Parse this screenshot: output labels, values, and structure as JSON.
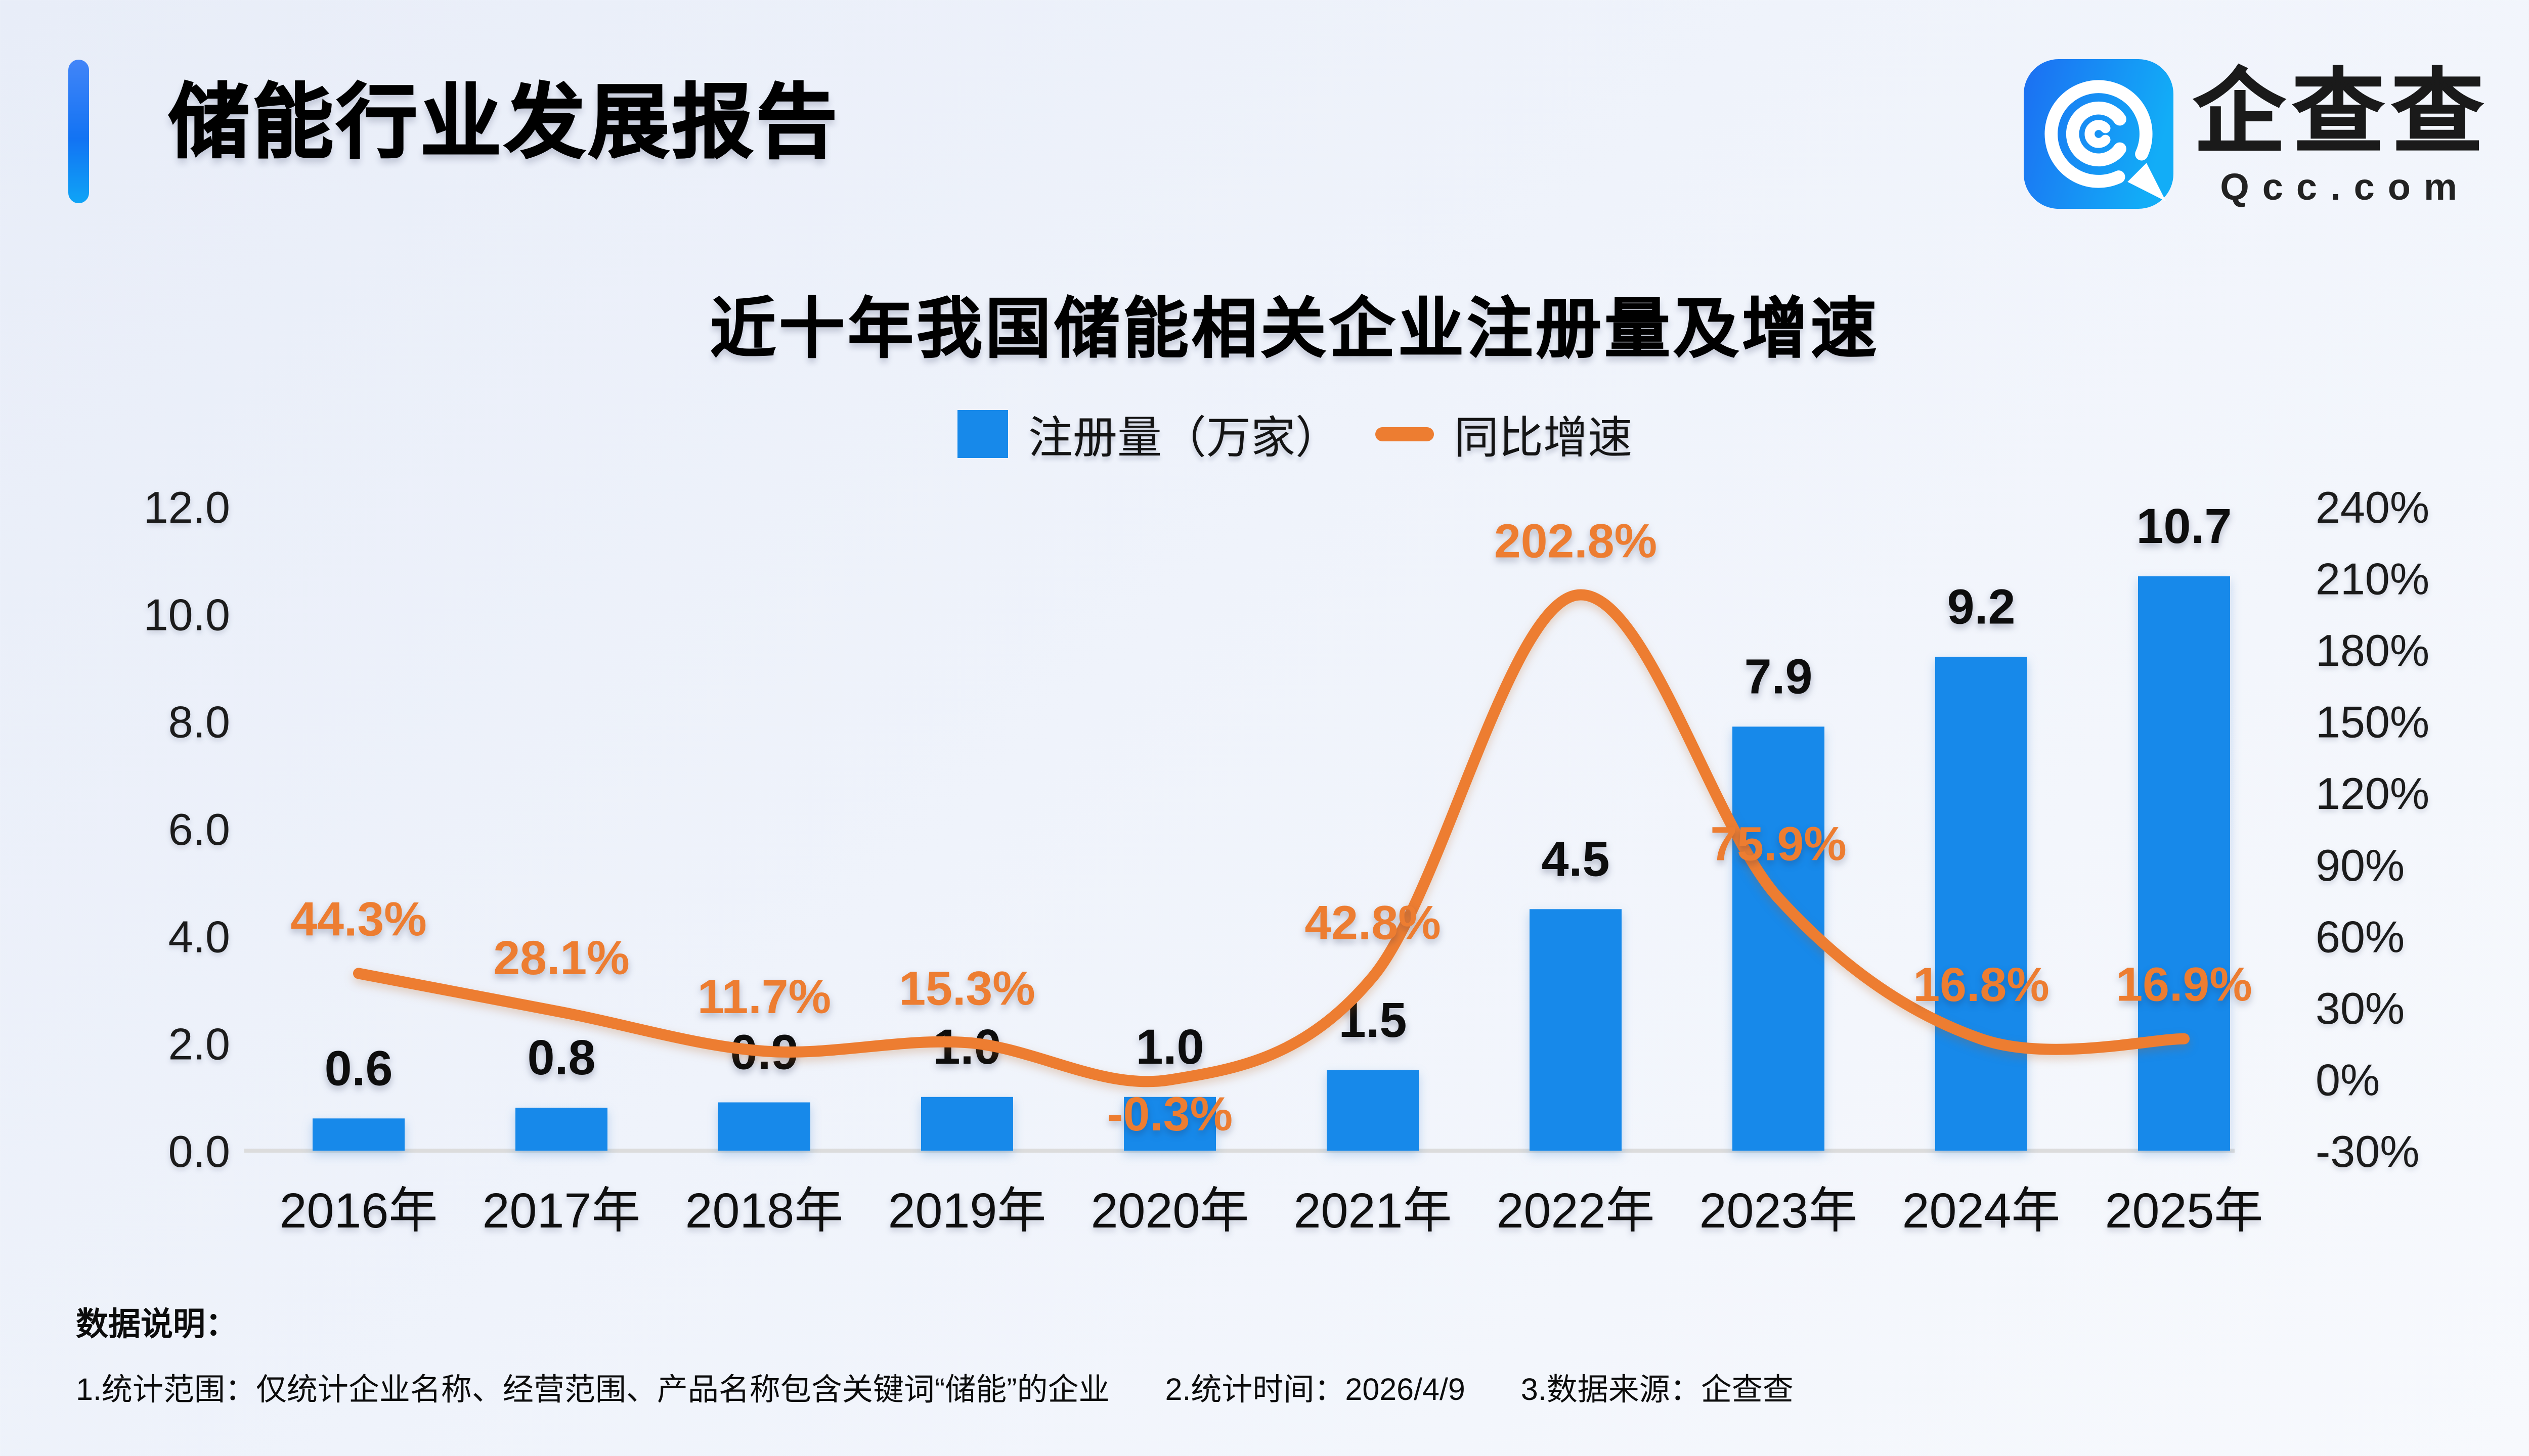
{
  "header": {
    "title": "储能行业发展报告",
    "logo": {
      "name": "企查查",
      "domain": "Qcc.com"
    }
  },
  "chart": {
    "title": "近十年我国储能相关企业注册量及增速",
    "legend": {
      "bars": "注册量（万家）",
      "line": "同比增速"
    }
  },
  "chart_data": {
    "type": "bar+line",
    "title": "近十年我国储能相关企业注册量及增速",
    "categories": [
      "2016年",
      "2017年",
      "2018年",
      "2019年",
      "2020年",
      "2021年",
      "2022年",
      "2023年",
      "2024年",
      "2025年"
    ],
    "series": [
      {
        "name": "注册量（万家）",
        "type": "bar",
        "axis": "left",
        "color": "#1789EA",
        "values": [
          0.6,
          0.8,
          0.9,
          1.0,
          1.0,
          1.5,
          4.5,
          7.9,
          9.2,
          10.7
        ],
        "labels": [
          "0.6",
          "0.8",
          "0.9",
          "1.0",
          "1.0",
          "1.5",
          "4.5",
          "7.9",
          "9.2",
          "10.7"
        ]
      },
      {
        "name": "同比增速",
        "type": "line",
        "axis": "right",
        "color": "#ED7D31",
        "values": [
          44.3,
          28.1,
          11.7,
          15.3,
          -0.3,
          42.8,
          202.8,
          75.9,
          16.8,
          16.9
        ],
        "labels": [
          "44.3%",
          "28.1%",
          "11.7%",
          "15.3%",
          "-0.3%",
          "42.8%",
          "202.8%",
          "75.9%",
          "16.8%",
          "16.9%"
        ]
      }
    ],
    "left_axis": {
      "min": 0,
      "max": 12,
      "ticks": [
        "0.0",
        "2.0",
        "4.0",
        "6.0",
        "8.0",
        "10.0",
        "12.0"
      ]
    },
    "right_axis": {
      "min": -30,
      "max": 240,
      "ticks": [
        "-30%",
        "0%",
        "30%",
        "60%",
        "90%",
        "120%",
        "150%",
        "180%",
        "210%",
        "240%"
      ]
    },
    "grid": false,
    "legend_position": "top"
  },
  "notes": {
    "heading": "数据说明：",
    "items": [
      "1.统计范围：仅统计企业名称、经营范围、产品名称包含关键词“储能”的企业",
      "2.统计时间：2026/4/9",
      "3.数据来源：企查查"
    ]
  }
}
